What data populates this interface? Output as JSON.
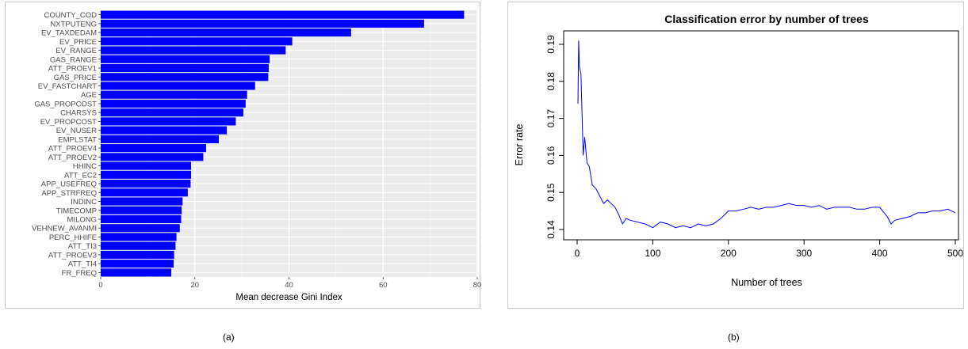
{
  "captions": {
    "a": "(a)",
    "b": "(b)"
  },
  "chart_data": [
    {
      "type": "bar",
      "orientation": "horizontal",
      "title": "",
      "xlabel": "Mean decrease Gini Index",
      "ylabel": "",
      "xlim": [
        0,
        80
      ],
      "xticks": [
        0,
        20,
        40,
        60,
        80
      ],
      "grid": true,
      "bar_color": "#0000ff",
      "background_color": "#ebebeb",
      "categories": [
        "COUNTY_COD",
        "NXTPUTENG",
        "EV_TAXDEDAM",
        "EV_PRICE",
        "EV_RANGE",
        "GAS_RANGE",
        "ATT_PROEV1",
        "GAS_PRICE",
        "EV_FASTCHART",
        "AGE",
        "GAS_PROPCOST",
        "CHARSYS",
        "EV_PROPCOST",
        "EV_NUSER",
        "EMPLSTAT",
        "ATT_PROEV4",
        "ATT_PROEV2",
        "HHINC",
        "ATT_EC2",
        "APP_USEFREQ",
        "APP_STRFREQ",
        "INDINC",
        "TIMECOMP",
        "MILONG",
        "VEHNEW_AVANMI",
        "PERC_HHIFE",
        "ATT_TI3",
        "ATT_PROEV3",
        "ATT_TI4",
        "FR_FREQ"
      ],
      "values": [
        77.2,
        68.7,
        53.2,
        40.7,
        39.3,
        35.9,
        35.7,
        35.6,
        32.8,
        31.1,
        30.8,
        30.3,
        28.7,
        26.8,
        25.1,
        22.4,
        21.8,
        19.2,
        19.2,
        19.1,
        18.5,
        17.4,
        17.2,
        17.1,
        16.8,
        16.1,
        15.9,
        15.6,
        15.5,
        15.0
      ]
    },
    {
      "type": "line",
      "title": "Classification error by number of trees",
      "xlabel": "Number of trees",
      "ylabel": "Error rate",
      "xlim": [
        0,
        500
      ],
      "ylim": [
        0.14,
        0.19
      ],
      "xticks": [
        0,
        100,
        200,
        300,
        400,
        500
      ],
      "yticks": [
        0.14,
        0.15,
        0.16,
        0.17,
        0.18,
        0.19
      ],
      "grid": false,
      "line_color": "#0000ff",
      "series": [
        {
          "x": [
            1,
            2,
            3,
            5,
            8,
            10,
            13,
            16,
            20,
            25,
            30,
            35,
            40,
            45,
            50,
            55,
            60,
            65,
            70,
            80,
            90,
            100,
            110,
            120,
            130,
            140,
            150,
            160,
            170,
            180,
            190,
            200,
            210,
            220,
            230,
            240,
            250,
            260,
            270,
            280,
            290,
            300,
            310,
            320,
            330,
            340,
            350,
            360,
            370,
            380,
            390,
            400,
            410,
            415,
            420,
            430,
            440,
            450,
            460,
            470,
            480,
            490,
            500
          ],
          "y": [
            0.174,
            0.191,
            0.184,
            0.182,
            0.16,
            0.165,
            0.158,
            0.157,
            0.152,
            0.151,
            0.149,
            0.147,
            0.148,
            0.147,
            0.146,
            0.144,
            0.1415,
            0.143,
            0.1425,
            0.142,
            0.1415,
            0.1405,
            0.142,
            0.1415,
            0.1405,
            0.141,
            0.1405,
            0.1415,
            0.141,
            0.1415,
            0.143,
            0.145,
            0.145,
            0.1455,
            0.146,
            0.1455,
            0.146,
            0.146,
            0.1465,
            0.147,
            0.1465,
            0.1465,
            0.146,
            0.1465,
            0.1455,
            0.146,
            0.146,
            0.146,
            0.1455,
            0.1455,
            0.146,
            0.146,
            0.1435,
            0.1415,
            0.1425,
            0.143,
            0.1435,
            0.1445,
            0.1445,
            0.145,
            0.145,
            0.1455,
            0.1445
          ]
        }
      ]
    }
  ]
}
